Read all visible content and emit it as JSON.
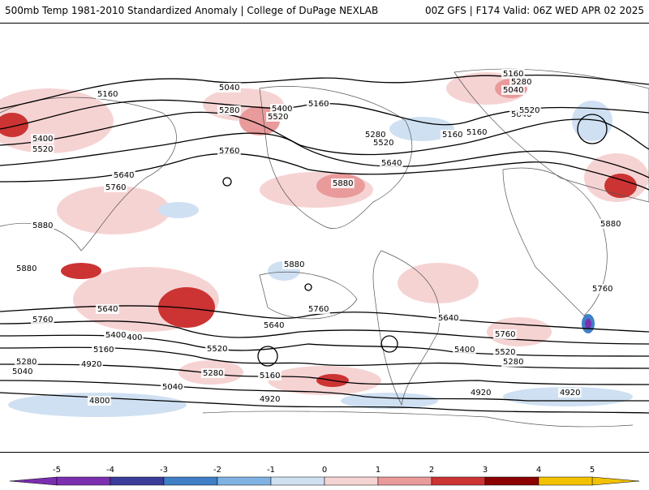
{
  "header": {
    "title_left": "500mb Temp 1981-2010 Standardized Anomaly | College of DuPage NEXLAB",
    "title_right": "00Z GFS | F174 Valid: 06Z WED APR 02 2025"
  },
  "map": {
    "contour_labels": [
      "5160",
      "5280",
      "5040",
      "5400",
      "5520",
      "5160",
      "5280",
      "5520",
      "5640",
      "5160",
      "5760",
      "5880",
      "5400",
      "5520",
      "5640",
      "5760",
      "5880",
      "5880",
      "5760",
      "5640",
      "5400",
      "5160",
      "5280",
      "5040",
      "4920",
      "4800",
      "4920",
      "5040",
      "5160",
      "5280",
      "5400",
      "5520",
      "5640",
      "5760",
      "4920",
      "4920",
      "5280",
      "5400",
      "5520",
      "5640",
      "5760",
      "5880",
      "5880",
      "5760",
      "5160",
      "5040",
      "5280",
      "5640",
      "5520",
      "5160"
    ],
    "colors": {
      "warm_light": "#f6d3d3",
      "warm_mid": "#e99a9a",
      "warm_strong": "#cc3333",
      "warm_extreme": "#8b0000",
      "cool_light": "#cfe0f2",
      "cool_mid": "#7fb2e2",
      "cool_strong": "#3f7fc7",
      "cool_extreme": "#3b3b9a",
      "land_outline": "#555555",
      "contour": "#000000"
    }
  },
  "colorbar": {
    "ticks": [
      "-5",
      "-4",
      "-3",
      "-2",
      "-1",
      "0",
      "1",
      "2",
      "3",
      "4",
      "5"
    ],
    "colors": [
      "#7b2fb0",
      "#3b3b9a",
      "#3f7fc7",
      "#7fb2e2",
      "#cfe0f2",
      "#ffffff",
      "#f6d3d3",
      "#e99a9a",
      "#cc3333",
      "#8b0000",
      "#f2c200"
    ]
  }
}
